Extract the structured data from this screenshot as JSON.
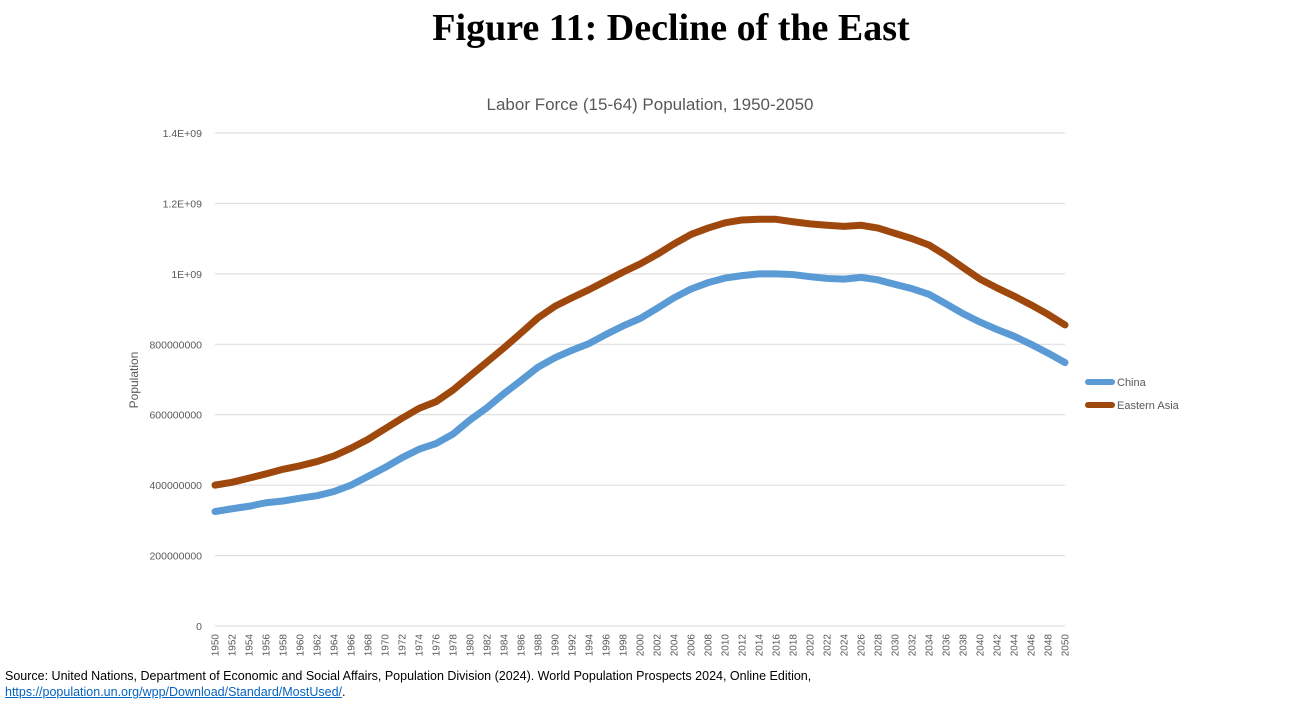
{
  "figure_title": "Figure 11: Decline of the East",
  "source": {
    "line1": "Source: United Nations, Department of Economic and Social Affairs, Population Division (2024). World Population Prospects 2024, Online Edition,",
    "link": "https://population.un.org/wpp/Download/Standard/MostUsed/",
    "link_suffix": "."
  },
  "chart_data": {
    "type": "line",
    "title": "Labor Force (15-64) Population, 1950-2050",
    "xlabel": "",
    "ylabel": "Population",
    "xlim": [
      1950,
      2050
    ],
    "ylim": [
      0,
      1400000000
    ],
    "y_ticks": [
      0,
      200000000,
      400000000,
      600000000,
      800000000,
      1000000000,
      1200000000,
      1400000000
    ],
    "y_tick_labels": [
      "0",
      "200000000",
      "400000000",
      "600000000",
      "800000000",
      "1E+09",
      "1.2E+09",
      "1.4E+09"
    ],
    "x_tick_labels": [
      "1950",
      "1952",
      "1954",
      "1956",
      "1958",
      "1960",
      "1962",
      "1964",
      "1966",
      "1968",
      "1970",
      "1972",
      "1974",
      "1976",
      "1978",
      "1980",
      "1982",
      "1984",
      "1986",
      "1988",
      "1990",
      "1992",
      "1994",
      "1996",
      "1998",
      "2000",
      "2002",
      "2004",
      "2006",
      "2008",
      "2010",
      "2012",
      "2014",
      "2016",
      "2018",
      "2020",
      "2022",
      "2024",
      "2026",
      "2028",
      "2030",
      "2032",
      "2034",
      "2036",
      "2038",
      "2040",
      "2042",
      "2044",
      "2046",
      "2048",
      "2050"
    ],
    "grid": true,
    "legend_position": "right",
    "series": [
      {
        "name": "China",
        "color": "#5b9bd5",
        "points": [
          [
            1950,
            325000000
          ],
          [
            1952,
            333000000
          ],
          [
            1954,
            340000000
          ],
          [
            1956,
            350000000
          ],
          [
            1958,
            355000000
          ],
          [
            1960,
            363000000
          ],
          [
            1962,
            370000000
          ],
          [
            1964,
            382000000
          ],
          [
            1966,
            400000000
          ],
          [
            1968,
            425000000
          ],
          [
            1970,
            450000000
          ],
          [
            1972,
            478000000
          ],
          [
            1974,
            502000000
          ],
          [
            1976,
            518000000
          ],
          [
            1978,
            545000000
          ],
          [
            1980,
            585000000
          ],
          [
            1982,
            620000000
          ],
          [
            1984,
            660000000
          ],
          [
            1986,
            697000000
          ],
          [
            1988,
            735000000
          ],
          [
            1990,
            762000000
          ],
          [
            1992,
            783000000
          ],
          [
            1994,
            802000000
          ],
          [
            1996,
            828000000
          ],
          [
            1998,
            852000000
          ],
          [
            2000,
            873000000
          ],
          [
            2002,
            902000000
          ],
          [
            2004,
            932000000
          ],
          [
            2006,
            957000000
          ],
          [
            2008,
            975000000
          ],
          [
            2010,
            988000000
          ],
          [
            2012,
            995000000
          ],
          [
            2014,
            1000000000
          ],
          [
            2016,
            1000000000
          ],
          [
            2018,
            998000000
          ],
          [
            2020,
            992000000
          ],
          [
            2022,
            987000000
          ],
          [
            2024,
            985000000
          ],
          [
            2026,
            990000000
          ],
          [
            2028,
            983000000
          ],
          [
            2030,
            970000000
          ],
          [
            2032,
            958000000
          ],
          [
            2034,
            942000000
          ],
          [
            2036,
            915000000
          ],
          [
            2038,
            887000000
          ],
          [
            2040,
            863000000
          ],
          [
            2042,
            842000000
          ],
          [
            2044,
            823000000
          ],
          [
            2046,
            800000000
          ],
          [
            2048,
            775000000
          ],
          [
            2050,
            748000000
          ]
        ]
      },
      {
        "name": "Eastern Asia",
        "color": "#9e480e",
        "points": [
          [
            1950,
            400000000
          ],
          [
            1952,
            408000000
          ],
          [
            1954,
            420000000
          ],
          [
            1956,
            432000000
          ],
          [
            1958,
            445000000
          ],
          [
            1960,
            455000000
          ],
          [
            1962,
            467000000
          ],
          [
            1964,
            483000000
          ],
          [
            1966,
            505000000
          ],
          [
            1968,
            530000000
          ],
          [
            1970,
            560000000
          ],
          [
            1972,
            590000000
          ],
          [
            1974,
            618000000
          ],
          [
            1976,
            637000000
          ],
          [
            1978,
            670000000
          ],
          [
            1980,
            710000000
          ],
          [
            1982,
            750000000
          ],
          [
            1984,
            790000000
          ],
          [
            1986,
            832000000
          ],
          [
            1988,
            875000000
          ],
          [
            1990,
            908000000
          ],
          [
            1992,
            932000000
          ],
          [
            1994,
            955000000
          ],
          [
            1996,
            980000000
          ],
          [
            1998,
            1005000000
          ],
          [
            2000,
            1028000000
          ],
          [
            2002,
            1055000000
          ],
          [
            2004,
            1085000000
          ],
          [
            2006,
            1112000000
          ],
          [
            2008,
            1130000000
          ],
          [
            2010,
            1145000000
          ],
          [
            2012,
            1153000000
          ],
          [
            2014,
            1155000000
          ],
          [
            2016,
            1155000000
          ],
          [
            2018,
            1148000000
          ],
          [
            2020,
            1142000000
          ],
          [
            2022,
            1138000000
          ],
          [
            2024,
            1135000000
          ],
          [
            2026,
            1138000000
          ],
          [
            2028,
            1130000000
          ],
          [
            2030,
            1115000000
          ],
          [
            2032,
            1100000000
          ],
          [
            2034,
            1082000000
          ],
          [
            2036,
            1052000000
          ],
          [
            2038,
            1018000000
          ],
          [
            2040,
            985000000
          ],
          [
            2042,
            960000000
          ],
          [
            2044,
            937000000
          ],
          [
            2046,
            912000000
          ],
          [
            2048,
            885000000
          ],
          [
            2050,
            855000000
          ]
        ]
      }
    ]
  }
}
